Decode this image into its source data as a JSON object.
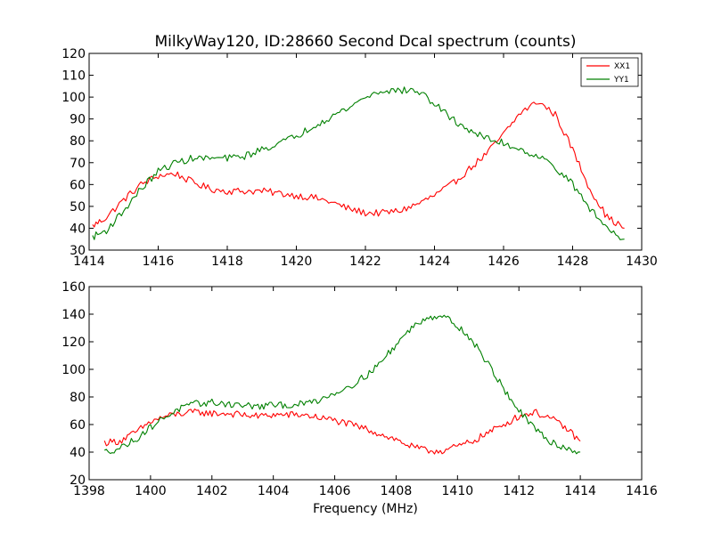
{
  "chart_data": [
    {
      "type": "line",
      "title": "MilkyWay120, ID:28660 Second Dcal spectrum (counts)",
      "xlabel": "",
      "ylabel": "",
      "xlim": [
        1414,
        1430
      ],
      "ylim": [
        30,
        120
      ],
      "xticks": [
        "1414",
        "1416",
        "1418",
        "1420",
        "1422",
        "1424",
        "1426",
        "1428",
        "1430"
      ],
      "yticks": [
        "30",
        "40",
        "50",
        "60",
        "70",
        "80",
        "90",
        "100",
        "110",
        "120"
      ],
      "grid": false,
      "legend": {
        "position": "top-right",
        "entries": [
          "XX1",
          "YY1"
        ]
      },
      "series": [
        {
          "name": "XX1",
          "color": "#ff0000",
          "x": [
            1414.1,
            1414.5,
            1415.0,
            1415.5,
            1416.0,
            1416.5,
            1417.0,
            1417.5,
            1418.0,
            1418.5,
            1419.0,
            1419.5,
            1420.0,
            1420.5,
            1421.0,
            1421.5,
            1422.0,
            1422.5,
            1423.0,
            1423.5,
            1424.0,
            1424.5,
            1425.0,
            1425.5,
            1426.0,
            1426.5,
            1427.0,
            1427.5,
            1428.0,
            1428.5,
            1429.0,
            1429.5
          ],
          "values": [
            41,
            45,
            53,
            60,
            64,
            65,
            61,
            58,
            57,
            57,
            57,
            56,
            55,
            54,
            52,
            49,
            47,
            47,
            48,
            51,
            55,
            60,
            67,
            74,
            83,
            93,
            98,
            92,
            76,
            58,
            45,
            40
          ]
        },
        {
          "name": "YY1",
          "color": "#008000",
          "x": [
            1414.1,
            1414.5,
            1415.0,
            1415.5,
            1416.0,
            1416.5,
            1417.0,
            1417.5,
            1418.0,
            1418.5,
            1419.0,
            1419.5,
            1420.0,
            1420.5,
            1421.0,
            1421.5,
            1422.0,
            1422.5,
            1423.0,
            1423.5,
            1424.0,
            1424.5,
            1425.0,
            1425.5,
            1426.0,
            1426.5,
            1427.0,
            1427.5,
            1428.0,
            1428.5,
            1429.0,
            1429.5
          ],
          "values": [
            36,
            39,
            48,
            58,
            66,
            70,
            72,
            72,
            72,
            73,
            76,
            79,
            82,
            87,
            91,
            95,
            100,
            103,
            103,
            103,
            97,
            90,
            85,
            81,
            79,
            76,
            73,
            68,
            60,
            49,
            40,
            35
          ]
        }
      ]
    },
    {
      "type": "line",
      "title": "",
      "xlabel": "Frequency (MHz)",
      "ylabel": "",
      "xlim": [
        1398,
        1416
      ],
      "ylim": [
        20,
        160
      ],
      "xticks": [
        "1398",
        "1400",
        "1402",
        "1404",
        "1406",
        "1408",
        "1410",
        "1412",
        "1414",
        "1416"
      ],
      "yticks": [
        "20",
        "40",
        "60",
        "80",
        "100",
        "120",
        "140",
        "160"
      ],
      "grid": false,
      "series": [
        {
          "name": "XX1",
          "color": "#ff0000",
          "x": [
            1398.5,
            1399.0,
            1399.5,
            1400.0,
            1400.5,
            1401.0,
            1401.5,
            1402.0,
            1402.5,
            1403.0,
            1403.5,
            1404.0,
            1404.5,
            1405.0,
            1405.5,
            1406.0,
            1406.5,
            1407.0,
            1407.5,
            1408.0,
            1408.5,
            1409.0,
            1409.5,
            1410.0,
            1410.5,
            1411.0,
            1411.5,
            1412.0,
            1412.5,
            1413.0,
            1413.5,
            1414.0
          ],
          "values": [
            47,
            48,
            54,
            62,
            66,
            68,
            69,
            68,
            68,
            67,
            66,
            67,
            67,
            67,
            65,
            63,
            60,
            57,
            53,
            49,
            44,
            41,
            41,
            44,
            48,
            54,
            60,
            66,
            69,
            65,
            58,
            48
          ]
        },
        {
          "name": "YY1",
          "color": "#008000",
          "x": [
            1398.5,
            1399.0,
            1399.5,
            1400.0,
            1400.5,
            1401.0,
            1401.5,
            1402.0,
            1402.5,
            1403.0,
            1403.5,
            1404.0,
            1404.5,
            1405.0,
            1405.5,
            1406.0,
            1406.5,
            1407.0,
            1407.5,
            1408.0,
            1408.5,
            1409.0,
            1409.5,
            1410.0,
            1410.5,
            1411.0,
            1411.5,
            1412.0,
            1412.5,
            1413.0,
            1413.5,
            1414.0
          ],
          "values": [
            40,
            43,
            49,
            58,
            66,
            72,
            75,
            76,
            75,
            74,
            73,
            74,
            74,
            75,
            78,
            83,
            88,
            95,
            105,
            118,
            130,
            138,
            139,
            132,
            120,
            104,
            86,
            70,
            57,
            48,
            43,
            40
          ]
        }
      ]
    }
  ]
}
